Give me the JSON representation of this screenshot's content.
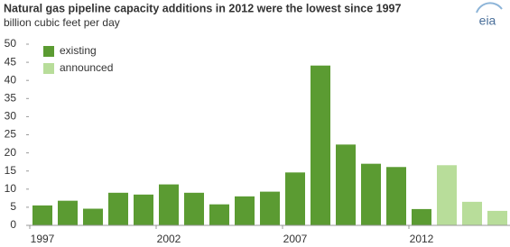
{
  "chart_data": {
    "type": "bar",
    "title": "Natural gas pipeline capacity additions in 2012 were the lowest since 1997",
    "subtitle": "billion cubic feet per day",
    "logo": "eia",
    "categories": [
      "1997",
      null,
      null,
      null,
      null,
      "2002",
      null,
      null,
      null,
      null,
      "2007",
      null,
      null,
      null,
      null,
      "2012",
      null,
      null,
      null
    ],
    "series": [
      {
        "name": "existing",
        "color": "#5b9b32",
        "values": [
          5.5,
          6.8,
          4.6,
          9,
          8.5,
          11.3,
          9,
          5.8,
          8,
          9.3,
          14.6,
          44.1,
          22.3,
          17,
          16.1,
          4.5,
          null,
          null,
          null
        ]
      },
      {
        "name": "announced",
        "color": "#b8dd9a",
        "values": [
          null,
          null,
          null,
          null,
          null,
          null,
          null,
          null,
          null,
          null,
          null,
          null,
          null,
          null,
          null,
          null,
          16.6,
          6.5,
          4
        ]
      }
    ],
    "ylim": [
      0,
      50
    ],
    "yticks": [
      0,
      5,
      10,
      15,
      20,
      25,
      30,
      35,
      40,
      45,
      50
    ],
    "grid": false
  }
}
